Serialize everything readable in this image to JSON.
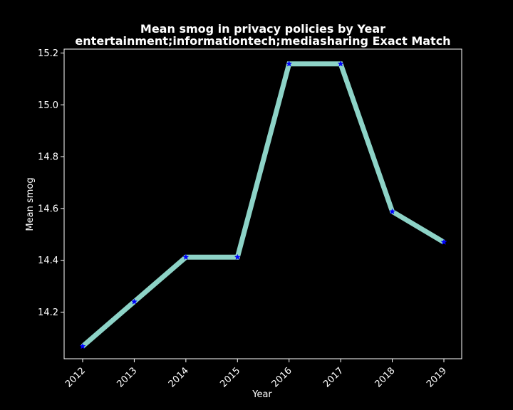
{
  "chart_data": {
    "type": "line",
    "title_line1": "Mean smog in privacy policies by Year",
    "title_line2": "entertainment;informationtech;mediasharing Exact Match",
    "xlabel": "Year",
    "ylabel": "Mean smog",
    "categories": [
      "2012",
      "2013",
      "2014",
      "2015",
      "2016",
      "2017",
      "2018",
      "2019"
    ],
    "series": [
      {
        "values": [
          14.068,
          14.24,
          14.412,
          14.412,
          15.158,
          15.158,
          14.588,
          14.47
        ]
      }
    ],
    "ylim": [
      14.02,
      15.215
    ],
    "yticks": [
      "14.2",
      "14.4",
      "14.6",
      "14.8",
      "15.0",
      "15.2"
    ],
    "grid": false,
    "colors": {
      "background": "#000000",
      "line": "#8dd3c7",
      "marker": "#0000ff",
      "text": "#ffffff",
      "axis": "#ffffff"
    }
  }
}
